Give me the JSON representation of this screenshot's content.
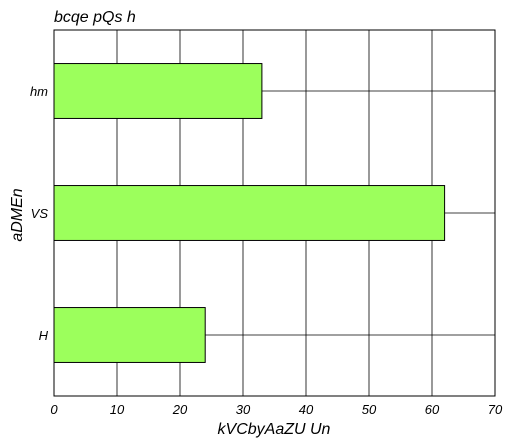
{
  "chart_data": {
    "type": "bar",
    "orientation": "horizontal",
    "title": "bcqe pQs h",
    "xlabel": "kVCbyAaZU Un",
    "ylabel": "aDMEn",
    "categories": [
      "H",
      "VS",
      "hm"
    ],
    "values": [
      24,
      62,
      33
    ],
    "xlim": [
      0,
      70
    ],
    "xticks": [
      "0",
      "10",
      "20",
      "30",
      "40",
      "50",
      "60",
      "70"
    ],
    "grid": true,
    "legend": "none",
    "bar_color": "#9cff5c",
    "edge_color": "#000000"
  }
}
